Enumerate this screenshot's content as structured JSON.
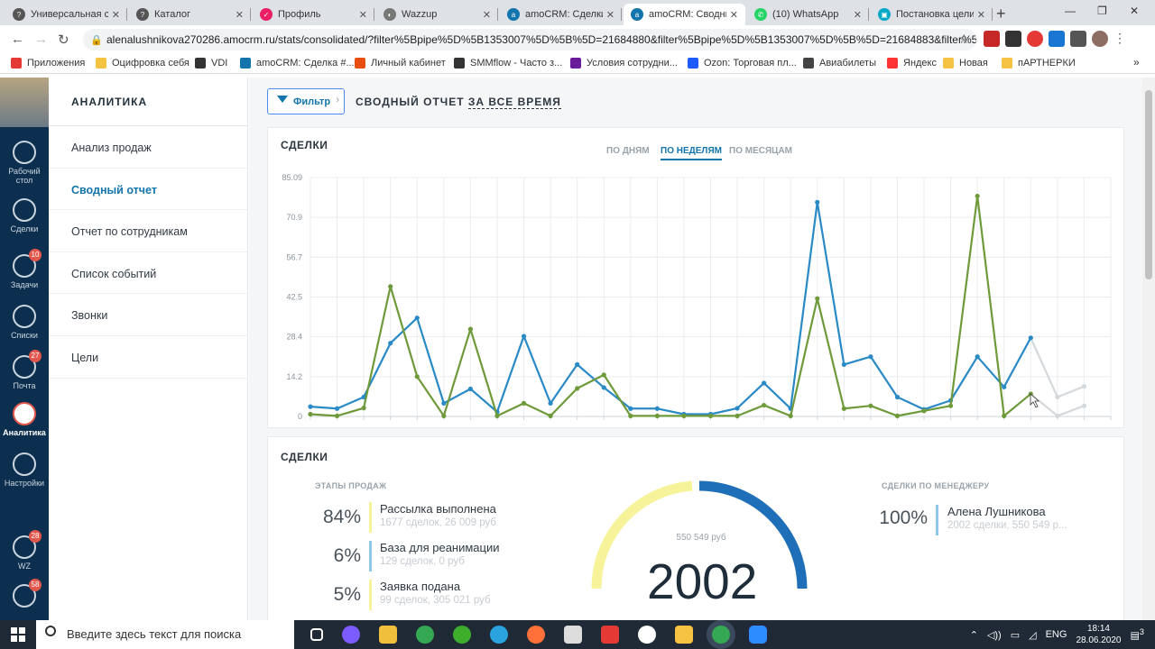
{
  "browser": {
    "tabs": [
      {
        "title": "Универсальная ст",
        "fav_color": "#555",
        "fav_glyph": "?"
      },
      {
        "title": "Каталог",
        "fav_color": "#555",
        "fav_glyph": "?"
      },
      {
        "title": "Профиль",
        "fav_color": "#e91e63",
        "fav_glyph": "✓"
      },
      {
        "title": "Wazzup",
        "fav_color": "#777",
        "fav_glyph": "◐"
      },
      {
        "title": "amoCRM: Сделки",
        "fav_color": "#1375ab",
        "fav_glyph": "a"
      },
      {
        "title": "amoCRM: Сводны",
        "fav_color": "#1375ab",
        "fav_glyph": "a"
      },
      {
        "title": "(10) WhatsApp",
        "fav_color": "#25d366",
        "fav_glyph": "✆"
      },
      {
        "title": "Постановка цели",
        "fav_color": "#00a8c6",
        "fav_glyph": "▣"
      }
    ],
    "active_tab": 5,
    "url": "alenalushnikova270286.amocrm.ru/stats/consolidated/?filter%5Bpipe%5D%5B1353007%5D%5B%5D=21684880&filter%5Bpipe%5D%5B1353007%5D%5B%5D=21684883&filter%5...",
    "bookmarks": [
      {
        "label": "Приложения",
        "color": "#e53935"
      },
      {
        "label": "Оцифровка себя",
        "color": "#f5c242"
      },
      {
        "label": "VDI",
        "color": "#333"
      },
      {
        "label": "amoCRM: Сделка #...",
        "color": "#1375ab"
      },
      {
        "label": "Личный кабинет",
        "color": "#e84e0f"
      },
      {
        "label": "SMMflow - Часто з...",
        "color": "#333"
      },
      {
        "label": "Условия сотрудни...",
        "color": "#6a1b9a"
      },
      {
        "label": "Ozon: Торговая пл...",
        "color": "#1e5bff"
      },
      {
        "label": "Авиабилеты",
        "color": "#444"
      },
      {
        "label": "Яндекс",
        "color": "#f33"
      },
      {
        "label": "Новая",
        "color": "#f5c242"
      },
      {
        "label": "пАРТНЕРКИ",
        "color": "#f5c242"
      }
    ]
  },
  "leftnav": [
    {
      "label": "Рабочий стол",
      "icon": "dashboard-icon",
      "badge": ""
    },
    {
      "label": "Сделки",
      "icon": "dollar-icon",
      "badge": ""
    },
    {
      "label": "Задачи",
      "icon": "check-icon",
      "badge": "10"
    },
    {
      "label": "Списки",
      "icon": "list-icon",
      "badge": ""
    },
    {
      "label": "Почта",
      "icon": "mail-icon",
      "badge": "27"
    },
    {
      "label": "Аналитика",
      "icon": "analytics-icon",
      "badge": ""
    },
    {
      "label": "Настройки",
      "icon": "wrench-icon",
      "badge": ""
    },
    {
      "label": "WZ",
      "icon": "wazzup-icon",
      "badge": "28"
    },
    {
      "label": "",
      "icon": "chat-icon",
      "badge": "58"
    }
  ],
  "sidebar": {
    "header": "АНАЛИТИКА",
    "items": [
      "Анализ продаж",
      "Сводный отчет",
      "Отчет по сотрудникам",
      "Список событий",
      "Звонки",
      "Цели"
    ],
    "active": 1
  },
  "page": {
    "filter_label": "Фильтр",
    "title_prefix": "СВОДНЫЙ ОТЧЕТ ",
    "title_period": "ЗА ВСЕ ВРЕМЯ"
  },
  "chart_card": {
    "title": "СДЕЛКИ",
    "periods": [
      "ПО ДНЯМ",
      "ПО НЕДЕЛЯМ",
      "ПО МЕСЯЦАМ"
    ],
    "active_period": 1
  },
  "chart_data": {
    "type": "line",
    "yticks": [
      "85.09",
      "70.9",
      "56.7",
      "42.5",
      "28.4",
      "14.2",
      "0"
    ],
    "ylim": [
      0,
      85.09
    ],
    "series": [
      {
        "color": "#2a8ac6",
        "values": [
          3.5,
          2.8,
          6.9,
          26.1,
          35.1,
          4.7,
          9.8,
          1.6,
          28.6,
          4.7,
          18.5,
          10.3,
          2.8,
          2.8,
          0.8,
          0.8,
          2.9,
          11.9,
          2.8,
          76.3,
          18.5,
          21.3,
          6.9,
          2.5,
          5.7,
          21.3,
          10.5,
          28,
          6.9,
          10.7
        ]
      },
      {
        "color": "#6f9a3a",
        "values": [
          0.8,
          0.2,
          3,
          46.3,
          14.2,
          0.2,
          31.1,
          0.2,
          4.7,
          0.2,
          10,
          14.8,
          0.2,
          0.2,
          0.2,
          0.2,
          0.2,
          4,
          0.2,
          42,
          2.8,
          3.8,
          0.2,
          2,
          3.8,
          78.5,
          0.2,
          8,
          0.2,
          3.8
        ]
      }
    ],
    "faded_from": 28
  },
  "stats": {
    "title": "СДЕЛКИ",
    "stages_label": "ЭТАПЫ ПРОДАЖ",
    "stages": [
      {
        "pct": "84%",
        "name": "Рассылка выполнена",
        "sub": "1677 сделок, 26 009 руб",
        "color": "#f7f39b"
      },
      {
        "pct": "6%",
        "name": "База для реанимации",
        "sub": "129 сделок, 0 руб",
        "color": "#8ec6e8"
      },
      {
        "pct": "5%",
        "name": "Заявка подана",
        "sub": "99 сделок, 305 021 руб",
        "color": "#f7f39b"
      }
    ],
    "total_sum": "550 549 руб",
    "total": "2002",
    "managers_label": "СДЕЛКИ ПО МЕНЕДЖЕРУ",
    "manager": {
      "pct": "100%",
      "name": "Алена Лушникова",
      "sub": "2002 сделки, 550 549 р..."
    }
  },
  "taskbar": {
    "search_placeholder": "Введите здесь текст для поиска",
    "lang": "ENG",
    "time": "18:14",
    "date": "28.06.2020",
    "notif": "3"
  }
}
